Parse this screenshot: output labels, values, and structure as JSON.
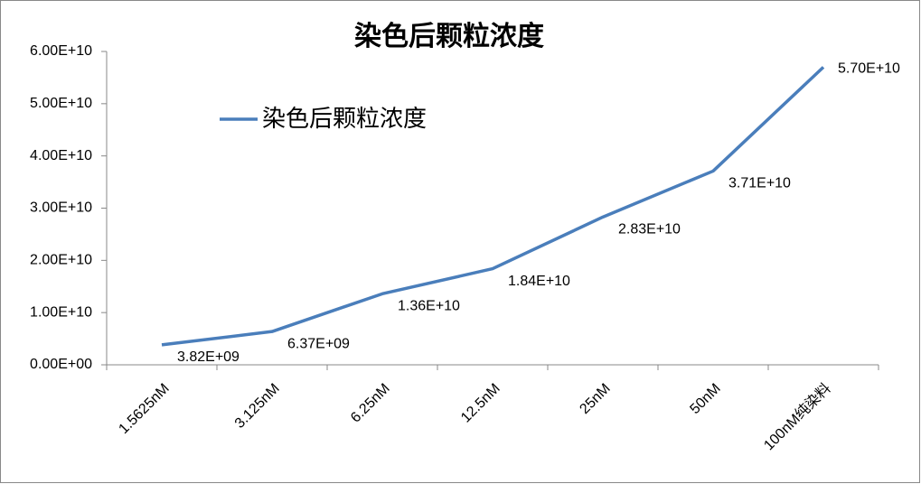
{
  "chart_data": {
    "type": "line",
    "title": "染色后颗粒浓度",
    "categories": [
      "1.5625nM",
      "3.125nM",
      "6.25nM",
      "12.5nM",
      "25nM",
      "50nM",
      "100nM纯染料"
    ],
    "series": [
      {
        "name": "染色后颗粒浓度",
        "color": "#4a7ebb",
        "values": [
          3820000000,
          6370000000,
          13600000000,
          18400000000,
          28300000000,
          37100000000,
          57000000000
        ],
        "value_labels": [
          "3.82E+09",
          "6.37E+09",
          "1.36E+10",
          "1.84E+10",
          "2.83E+10",
          "3.71E+10",
          "5.70E+10"
        ]
      }
    ],
    "ylim": [
      0,
      60000000000
    ],
    "yticks": [
      {
        "value": 0,
        "label": "0.00E+00"
      },
      {
        "value": 10000000000,
        "label": "1.00E+10"
      },
      {
        "value": 20000000000,
        "label": "2.00E+10"
      },
      {
        "value": 30000000000,
        "label": "3.00E+10"
      },
      {
        "value": 40000000000,
        "label": "4.00E+10"
      },
      {
        "value": 50000000000,
        "label": "5.00E+10"
      },
      {
        "value": 60000000000,
        "label": "6.00E+10"
      }
    ],
    "legend": "upper left"
  }
}
